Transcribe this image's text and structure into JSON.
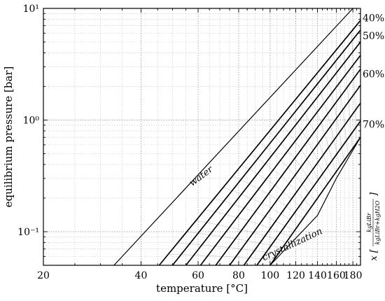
{
  "chart_data": {
    "type": "line",
    "title": "",
    "xlabel": "temperature [°C]",
    "ylabel": "equilibrium pressure [bar]",
    "xscale": "log",
    "yscale": "log",
    "xlim": [
      20,
      190
    ],
    "ylim": [
      0.05,
      10
    ],
    "grid": "major and minor, dotted",
    "x_ticks": [
      "20",
      "40",
      "60",
      "80",
      "100",
      "120",
      "140",
      "160",
      "180"
    ],
    "y_ticks": [
      "10⁻¹",
      "10⁰",
      "10¹"
    ],
    "right_label": "x [kgLiBr / (kgLiBr + kgH2O)]",
    "series": [
      {
        "name": "water",
        "x": [
          33,
          180
        ],
        "y": [
          0.05,
          10
        ]
      },
      {
        "x": [
          45.5,
          190
        ],
        "y": [
          0.05,
          7.8
        ]
      },
      {
        "x": [
          50,
          190
        ],
        "y": [
          0.05,
          6.4
        ]
      },
      {
        "x": [
          55,
          190
        ],
        "y": [
          0.05,
          5.0
        ]
      },
      {
        "x": [
          61,
          190
        ],
        "y": [
          0.05,
          3.8
        ]
      },
      {
        "x": [
          68,
          190
        ],
        "y": [
          0.05,
          2.85
        ]
      },
      {
        "x": [
          75,
          190
        ],
        "y": [
          0.05,
          2.05
        ]
      },
      {
        "x": [
          83,
          190
        ],
        "y": [
          0.05,
          1.42
        ]
      },
      {
        "x": [
          91,
          190
        ],
        "y": [
          0.05,
          0.98
        ]
      },
      {
        "x": [
          100,
          190
        ],
        "y": [
          0.05,
          0.7
        ]
      }
    ],
    "crystallization": {
      "x": [
        100,
        140,
        160,
        190
      ],
      "y": [
        0.05,
        0.14,
        0.3,
        0.7
      ]
    },
    "annotations": [
      {
        "text": "water",
        "x": 62,
        "y": 0.3
      },
      {
        "text": "crystallization",
        "x": 118,
        "y": 0.073
      }
    ],
    "right_percent_labels": [
      {
        "text": "40%",
        "y": 8.2
      },
      {
        "text": "50%",
        "y": 5.7
      },
      {
        "text": "60%",
        "y": 2.6
      },
      {
        "text": "70%",
        "y": 0.92
      }
    ]
  }
}
